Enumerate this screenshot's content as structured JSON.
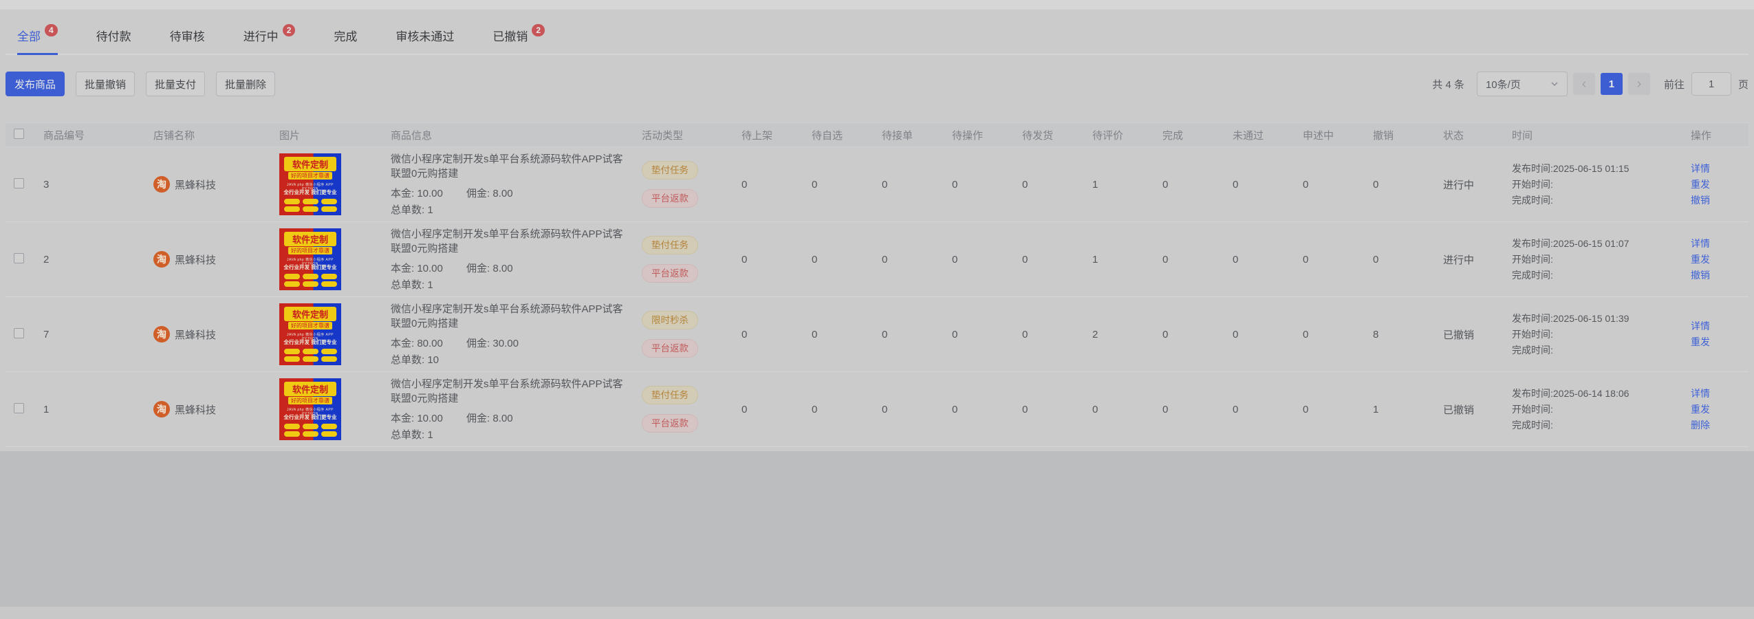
{
  "tabs": [
    {
      "name": "all",
      "label": "全部",
      "badge": "4",
      "active": true
    },
    {
      "name": "pending-payment",
      "label": "待付款",
      "badge": "",
      "active": false
    },
    {
      "name": "pending-review",
      "label": "待审核",
      "badge": "",
      "active": false
    },
    {
      "name": "in-progress",
      "label": "进行中",
      "badge": "2",
      "active": false
    },
    {
      "name": "completed",
      "label": "完成",
      "badge": "",
      "active": false
    },
    {
      "name": "review-rejected",
      "label": "审核未通过",
      "badge": "",
      "active": false
    },
    {
      "name": "revoked",
      "label": "已撤销",
      "badge": "2",
      "active": false
    }
  ],
  "toolbar": {
    "buttons": [
      {
        "name": "publish-product",
        "label": "发布商品",
        "primary": true
      },
      {
        "name": "batch-revoke",
        "label": "批量撤销",
        "primary": false
      },
      {
        "name": "batch-pay",
        "label": "批量支付",
        "primary": false
      },
      {
        "name": "batch-delete",
        "label": "批量删除",
        "primary": false
      }
    ]
  },
  "pagination": {
    "total_text": "共 4 条",
    "page_size": "10条/页",
    "prev_icon": "‹",
    "next_icon": "›",
    "current_page": "1",
    "goto_label": "前往",
    "goto_value": "1",
    "page_unit": "页"
  },
  "store_icon_char": "淘",
  "product_image": {
    "title": "软件定制",
    "subtitle": "好的项目才靠谱",
    "tech_line": "JAVA php 微信小程序 APP PYTHON",
    "tagline": "全行业开发 我们更专业"
  },
  "table": {
    "headers": [
      "商品编号",
      "店铺名称",
      "图片",
      "商品信息",
      "活动类型",
      "待上架",
      "待自选",
      "待接单",
      "待操作",
      "待发货",
      "待评价",
      "完成",
      "未通过",
      "申述中",
      "撤销",
      "状态",
      "时间",
      "操作"
    ],
    "rows": [
      {
        "id": "3",
        "store": "黑蜂科技",
        "title": "微信小程序定制开发s单平台系统源码软件APP试客联盟0元购搭建",
        "principal": "本金: 10.00",
        "commission": "佣金: 8.00",
        "orders": "总单数: 1",
        "tags": [
          {
            "label": "垫付任务",
            "type": "warning"
          },
          {
            "label": "平台返款",
            "type": "danger"
          }
        ],
        "counts": [
          "0",
          "0",
          "0",
          "0",
          "0",
          "1",
          "0",
          "0",
          "0",
          "0"
        ],
        "status": "进行中",
        "publish_time": "发布时间:2025-06-15 01:15",
        "start_time": "开始时间:",
        "finish_time": "完成时间:",
        "actions": [
          {
            "name": "detail",
            "label": "详情"
          },
          {
            "name": "resend",
            "label": "重发"
          },
          {
            "name": "revoke",
            "label": "撤销"
          }
        ]
      },
      {
        "id": "2",
        "store": "黑蜂科技",
        "title": "微信小程序定制开发s单平台系统源码软件APP试客联盟0元购搭建",
        "principal": "本金: 10.00",
        "commission": "佣金: 8.00",
        "orders": "总单数: 1",
        "tags": [
          {
            "label": "垫付任务",
            "type": "warning"
          },
          {
            "label": "平台返款",
            "type": "danger"
          }
        ],
        "counts": [
          "0",
          "0",
          "0",
          "0",
          "0",
          "1",
          "0",
          "0",
          "0",
          "0"
        ],
        "status": "进行中",
        "publish_time": "发布时间:2025-06-15 01:07",
        "start_time": "开始时间:",
        "finish_time": "完成时间:",
        "actions": [
          {
            "name": "detail",
            "label": "详情"
          },
          {
            "name": "resend",
            "label": "重发"
          },
          {
            "name": "revoke",
            "label": "撤销"
          }
        ]
      },
      {
        "id": "7",
        "store": "黑蜂科技",
        "title": "微信小程序定制开发s单平台系统源码软件APP试客联盟0元购搭建",
        "principal": "本金: 80.00",
        "commission": "佣金: 30.00",
        "orders": "总单数: 10",
        "tags": [
          {
            "label": "限时秒杀",
            "type": "warning"
          },
          {
            "label": "平台返款",
            "type": "danger"
          }
        ],
        "counts": [
          "0",
          "0",
          "0",
          "0",
          "0",
          "2",
          "0",
          "0",
          "0",
          "8"
        ],
        "status": "已撤销",
        "publish_time": "发布时间:2025-06-15 01:39",
        "start_time": "开始时间:",
        "finish_time": "完成时间:",
        "actions": [
          {
            "name": "detail",
            "label": "详情"
          },
          {
            "name": "resend",
            "label": "重发"
          }
        ]
      },
      {
        "id": "1",
        "store": "黑蜂科技",
        "title": "微信小程序定制开发s单平台系统源码软件APP试客联盟0元购搭建",
        "principal": "本金: 10.00",
        "commission": "佣金: 8.00",
        "orders": "总单数: 1",
        "tags": [
          {
            "label": "垫付任务",
            "type": "warning"
          },
          {
            "label": "平台返款",
            "type": "danger"
          }
        ],
        "counts": [
          "0",
          "0",
          "0",
          "0",
          "0",
          "0",
          "0",
          "0",
          "0",
          "1"
        ],
        "status": "已撤销",
        "publish_time": "发布时间:2025-06-14 18:06",
        "start_time": "开始时间:",
        "finish_time": "完成时间:",
        "actions": [
          {
            "name": "detail",
            "label": "详情"
          },
          {
            "name": "resend",
            "label": "重发"
          },
          {
            "name": "delete",
            "label": "删除"
          }
        ]
      }
    ]
  },
  "colors": {
    "accent_blue": "#3c5ed2",
    "badge_red": "#c75558",
    "link_blue": "#3f62d6",
    "tag_warning_text": "#b5843b",
    "tag_danger_text": "#c05c5c",
    "store_icon_orange": "#cf5e28"
  }
}
